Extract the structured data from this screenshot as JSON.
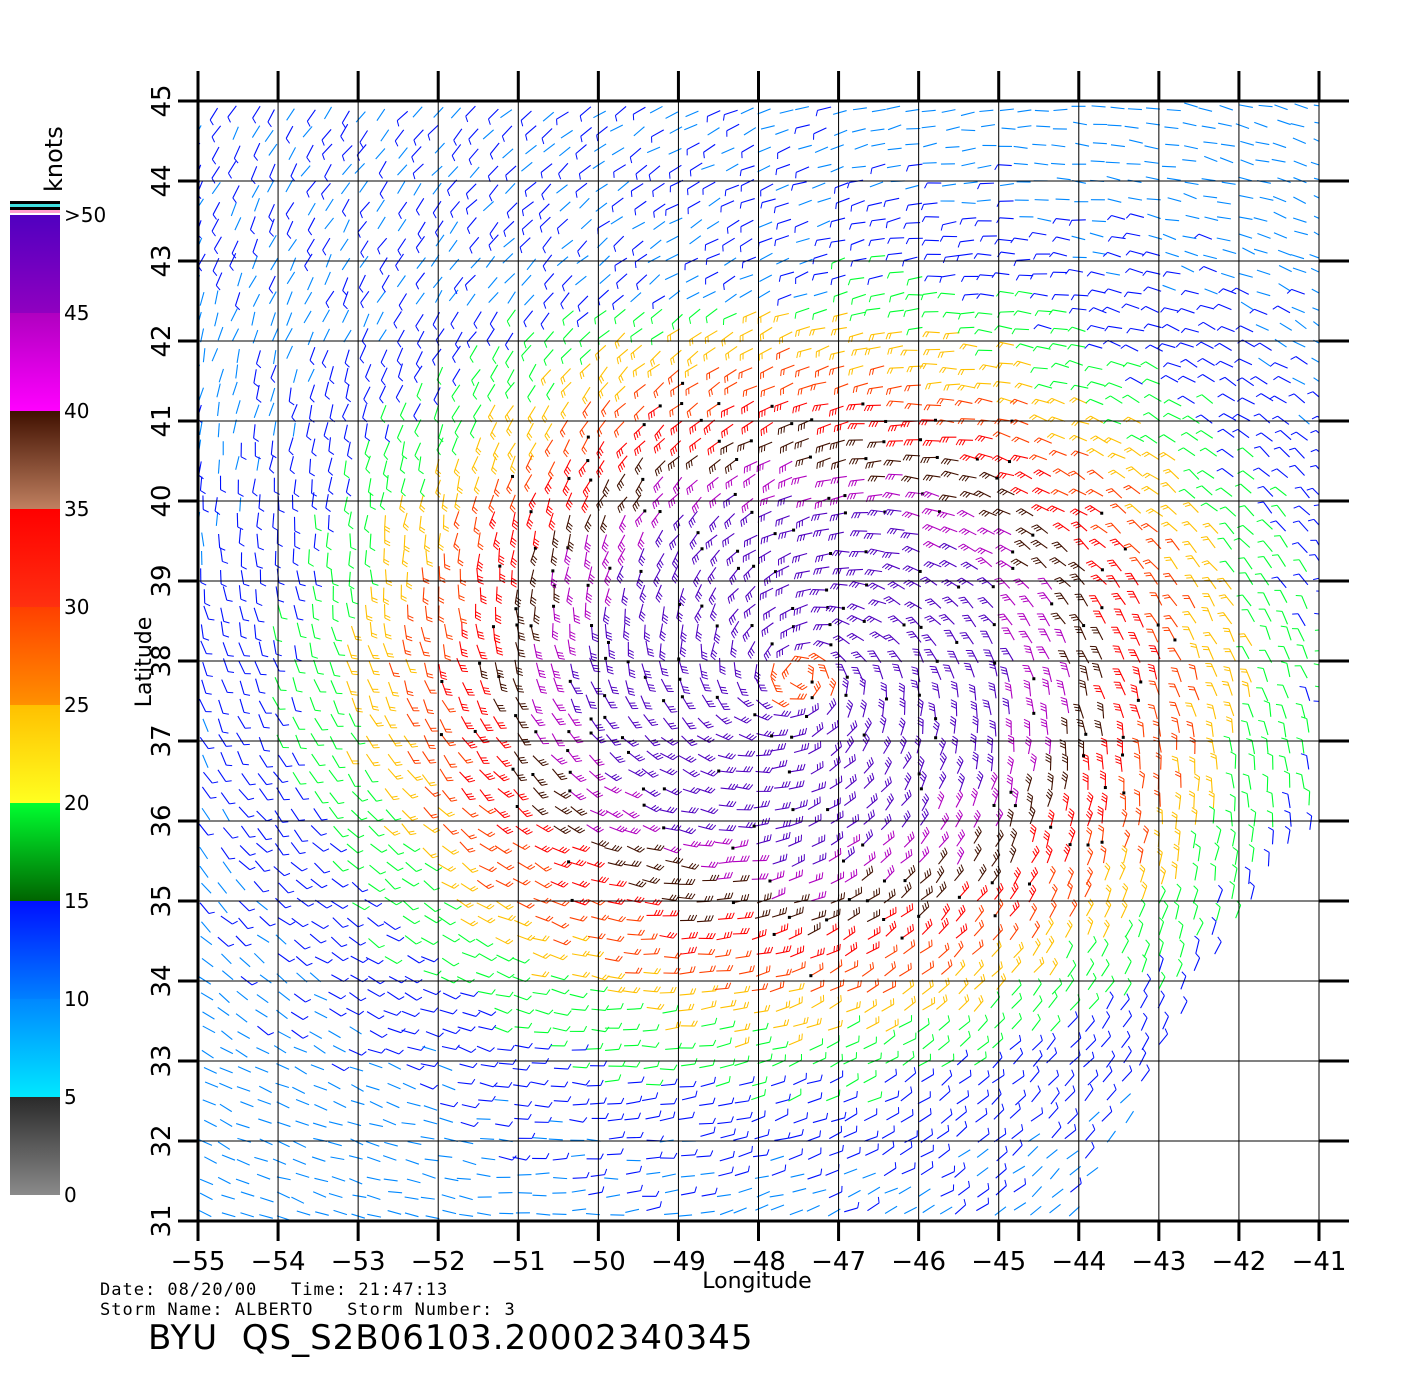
{
  "map": {
    "xlabel": "Longitude",
    "ylabel": "Latitude",
    "lon_range": [
      -55,
      -41
    ],
    "lat_range": [
      31,
      45
    ],
    "lon_ticks": [
      -55,
      -54,
      -53,
      -52,
      -51,
      -50,
      -49,
      -48,
      -47,
      -46,
      -45,
      -44,
      -43,
      -42,
      -41
    ],
    "lat_ticks": [
      31,
      32,
      33,
      34,
      35,
      36,
      37,
      38,
      39,
      40,
      41,
      42,
      43,
      44,
      45
    ],
    "grid": true,
    "storm_center": {
      "lon": -47.5,
      "lat": 37.8
    },
    "swath_east_edge": [
      {
        "lat": 31.0,
        "lon": -44.1
      },
      {
        "lat": 32.0,
        "lon": -43.6
      },
      {
        "lat": 33.0,
        "lon": -43.0
      },
      {
        "lat": 34.0,
        "lon": -42.5
      },
      {
        "lat": 35.0,
        "lon": -41.8
      },
      {
        "lat": 36.0,
        "lon": -41.1
      },
      {
        "lat": 37.0,
        "lon": -40.9
      },
      {
        "lat": 45.0,
        "lon": -40.9
      }
    ]
  },
  "legend": {
    "units": "knots",
    "labels": [
      "0",
      "5",
      "10",
      "15",
      "20",
      "25",
      "30",
      "35",
      "40",
      "45",
      ">50"
    ],
    "label_values": [
      0,
      5,
      10,
      15,
      20,
      25,
      30,
      35,
      40,
      45,
      50
    ],
    "segments": [
      {
        "from": 0,
        "to": 5,
        "colors": [
          "#8a8a8a",
          "#2a2a2a"
        ]
      },
      {
        "from": 5,
        "to": 10,
        "colors": [
          "#00e8ff",
          "#0088ff"
        ]
      },
      {
        "from": 10,
        "to": 15,
        "colors": [
          "#0080ff",
          "#0010ff"
        ]
      },
      {
        "from": 15,
        "to": 20,
        "colors": [
          "#006400",
          "#00ff30"
        ]
      },
      {
        "from": 20,
        "to": 25,
        "colors": [
          "#ffff20",
          "#ffc000"
        ]
      },
      {
        "from": 25,
        "to": 30,
        "colors": [
          "#ff9000",
          "#ff4000"
        ]
      },
      {
        "from": 30,
        "to": 35,
        "colors": [
          "#ff3010",
          "#ff0000"
        ]
      },
      {
        "from": 35,
        "to": 40,
        "colors": [
          "#c08060",
          "#401000"
        ]
      },
      {
        "from": 40,
        "to": 45,
        "colors": [
          "#ff00ff",
          "#b000c0"
        ]
      },
      {
        "from": 45,
        "to": 50,
        "colors": [
          "#9000c0",
          "#5000c0"
        ]
      }
    ],
    "top_stripes": [
      "#ff9ecf",
      "#000000",
      "#40e0e0",
      "#000000"
    ]
  },
  "info": {
    "line1": "Date: 08/20/00   Time: 21:47:13",
    "line2": "Storm Name: ALBERTO   Storm Number: 3",
    "product": "BYU  QS_S2B06103.20002340345"
  }
}
